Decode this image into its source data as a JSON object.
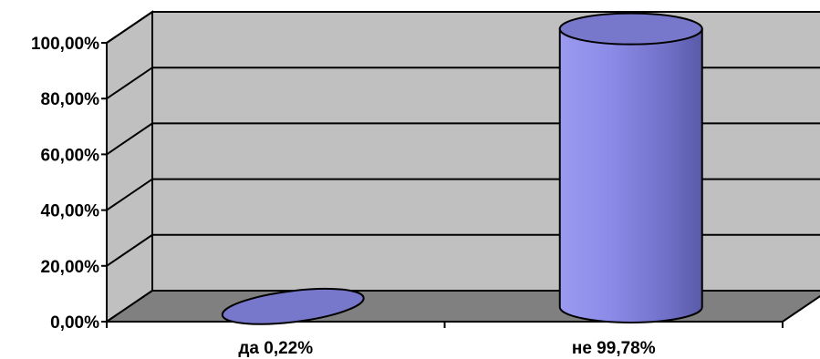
{
  "colors": {
    "back_wall": "#c0c0c0",
    "floor": "#808080",
    "bar_face": "#7f7fd8",
    "bar_top": "#7777cc",
    "outline": "#000000"
  },
  "chart_data": {
    "type": "bar",
    "style": "3d-cylinder",
    "title": "",
    "xlabel": "",
    "ylabel": "",
    "categories": [
      "да 0,22%",
      "не 99,78%"
    ],
    "values": [
      0.22,
      99.78
    ],
    "ylim": [
      0,
      100
    ],
    "yticks": [
      "0,00%",
      "20,00%",
      "40,00%",
      "60,00%",
      "80,00%",
      "100,00%"
    ],
    "ytick_values": [
      0,
      20,
      40,
      60,
      80,
      100
    ],
    "grid": true,
    "legend": "none"
  }
}
